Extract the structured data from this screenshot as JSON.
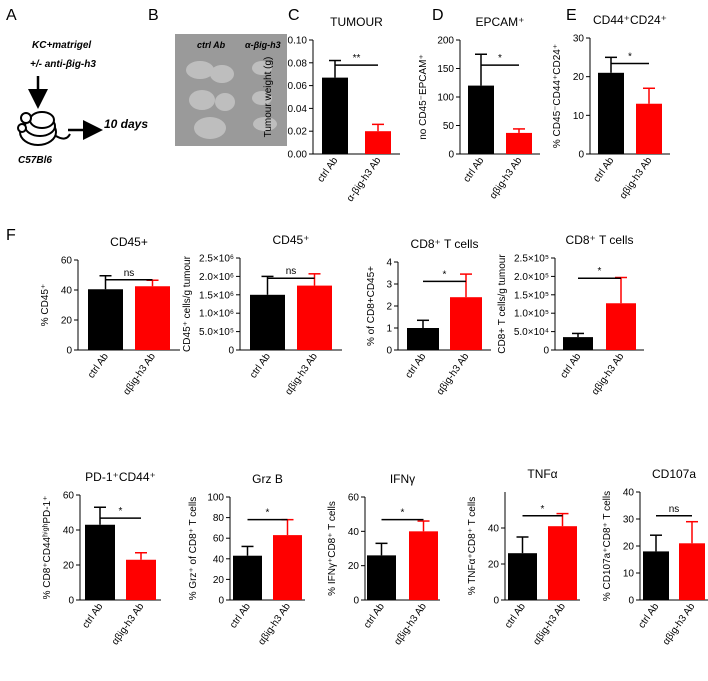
{
  "panel_a": {
    "letter": "A",
    "treatment": [
      "KC+matrigel",
      "+/- anti-βig-h3"
    ],
    "strain": "C57Bl6",
    "duration": "10 days"
  },
  "panel_b": {
    "letter": "B",
    "labels": [
      "ctrl Ab",
      "α-βig-h3"
    ]
  },
  "panel_f": {
    "letter": "F"
  },
  "chart_data": [
    {
      "type": "bar",
      "letter": "C",
      "title": "TUMOUR",
      "ylabel": "Tumour weight (g)",
      "categories": [
        "ctrl Ab",
        "α-βig-h3 Ab"
      ],
      "values": [
        0.067,
        0.02
      ],
      "errors": [
        0.015,
        0.006
      ],
      "colors": [
        "#000000",
        "#ff0000"
      ],
      "ylim": [
        0,
        0.1
      ],
      "yticks": [
        {
          "value": 0,
          "label": "0.00"
        },
        {
          "value": 0.02,
          "label": "0.02"
        },
        {
          "value": 0.04,
          "label": "0.04"
        },
        {
          "value": 0.06,
          "label": "0.06"
        },
        {
          "value": 0.08,
          "label": "0.08"
        },
        {
          "value": 0.1,
          "label": "0.10"
        }
      ],
      "significance": "**"
    },
    {
      "type": "bar",
      "letter": "D",
      "title": "EPCAM⁺",
      "ylabel": "no CD45⁻EPCAM⁺",
      "categories": [
        "ctrl Ab",
        "αβig-h3 Ab"
      ],
      "values": [
        120,
        37
      ],
      "errors": [
        55,
        7
      ],
      "colors": [
        "#000000",
        "#ff0000"
      ],
      "ylim": [
        0,
        200
      ],
      "yticks": [
        0,
        50,
        100,
        150,
        200
      ],
      "significance": "*"
    },
    {
      "type": "bar",
      "letter": "E",
      "title": "CD44⁺CD24⁺",
      "ylabel": "% CD45⁻CD44⁺CD24⁺",
      "categories": [
        "ctrl Ab",
        "αβig-h3 Ab"
      ],
      "values": [
        21,
        13
      ],
      "errors": [
        4,
        4
      ],
      "colors": [
        "#000000",
        "#ff0000"
      ],
      "ylim": [
        0,
        30
      ],
      "yticks": [
        0,
        10,
        20,
        30
      ],
      "significance": "*"
    },
    {
      "type": "bar",
      "title": "CD45+",
      "ylabel": "% CD45⁺",
      "categories": [
        "ctrl Ab",
        "αβig-h3 Ab"
      ],
      "values": [
        40.5,
        42.5
      ],
      "errors": [
        9,
        4
      ],
      "colors": [
        "#000000",
        "#ff0000"
      ],
      "ylim": [
        0,
        60
      ],
      "yticks": [
        0,
        20,
        40,
        60
      ],
      "significance": "ns"
    },
    {
      "type": "bar",
      "title": "CD45⁺",
      "ylabel": "CD45⁺ cells/g tumour",
      "categories": [
        "ctrl Ab",
        "αβig-h3 Ab"
      ],
      "values": [
        1500000,
        1750000
      ],
      "errors": [
        500000,
        320000
      ],
      "colors": [
        "#000000",
        "#ff0000"
      ],
      "ylim": [
        0,
        2500000
      ],
      "yticks": [
        0,
        {
          "value": 500000,
          "label": "5.0×10⁵"
        },
        {
          "value": 1000000,
          "label": "1.0×10⁶"
        },
        {
          "value": 1500000,
          "label": "1.5×10⁶"
        },
        {
          "value": 2000000,
          "label": "2.0×10⁶"
        },
        {
          "value": 2500000,
          "label": "2.5×10⁶"
        }
      ],
      "significance": "ns"
    },
    {
      "type": "bar",
      "title": "CD8⁺ T cells",
      "ylabel": "% of CD8+CD45+",
      "categories": [
        "ctrl Ab",
        "αβig-h3 Ab"
      ],
      "values": [
        1.0,
        2.4
      ],
      "errors": [
        0.35,
        1.05
      ],
      "colors": [
        "#000000",
        "#ff0000"
      ],
      "ylim": [
        0,
        4
      ],
      "yticks": [
        0,
        1,
        2,
        3,
        4
      ],
      "significance": "*"
    },
    {
      "type": "bar",
      "title": "CD8⁺ T cells",
      "ylabel": "CD8+ T cells/g tumour",
      "categories": [
        "ctrl Ab",
        "αβig-h3 Ab"
      ],
      "values": [
        35000,
        127000
      ],
      "errors": [
        10000,
        70000
      ],
      "colors": [
        "#000000",
        "#ff0000"
      ],
      "ylim": [
        0,
        250000
      ],
      "yticks": [
        0,
        {
          "value": 50000,
          "label": "5.0×10⁴"
        },
        {
          "value": 100000,
          "label": "1.0×10⁵"
        },
        {
          "value": 150000,
          "label": "1.5×10⁵"
        },
        {
          "value": 200000,
          "label": "2.0×10⁵"
        },
        {
          "value": 250000,
          "label": "2.5×10⁵"
        }
      ],
      "significance": "*"
    },
    {
      "type": "bar",
      "title": "PD-1⁺CD44⁺",
      "ylabel": "% CD8⁺CD44ʰⁱᵍʰPD-1⁺",
      "categories": [
        "ctrl Ab",
        "αβig-h3 Ab"
      ],
      "values": [
        43,
        23
      ],
      "errors": [
        10,
        4
      ],
      "colors": [
        "#000000",
        "#ff0000"
      ],
      "ylim": [
        0,
        60
      ],
      "yticks": [
        0,
        20,
        40,
        60
      ],
      "significance": "*"
    },
    {
      "type": "bar",
      "title": "Grz B",
      "ylabel": "% Grz⁺ of CD8⁺ T cells",
      "categories": [
        "ctrl Ab",
        "αβig-h3 Ab"
      ],
      "values": [
        43,
        63
      ],
      "errors": [
        9,
        15
      ],
      "colors": [
        "#000000",
        "#ff0000"
      ],
      "ylim": [
        0,
        100
      ],
      "yticks": [
        0,
        20,
        40,
        60,
        80,
        100
      ],
      "significance": "*"
    },
    {
      "type": "bar",
      "title": "IFNγ",
      "ylabel": "% IFNγ⁺CD8⁺ T cells",
      "categories": [
        "ctrl Ab",
        "αβig-h3 Ab"
      ],
      "values": [
        26,
        40
      ],
      "errors": [
        7,
        6
      ],
      "colors": [
        "#000000",
        "#ff0000"
      ],
      "ylim": [
        0,
        60
      ],
      "yticks": [
        0,
        20,
        40,
        60
      ],
      "significance": "*"
    },
    {
      "type": "bar",
      "title": "TNFα",
      "ylabel": "% TNFα⁺CD8⁺ T cells",
      "categories": [
        "ctrl Ab",
        "αβig-h3 Ab"
      ],
      "values": [
        26,
        41
      ],
      "errors": [
        9,
        7
      ],
      "colors": [
        "#000000",
        "#ff0000"
      ],
      "ylim": [
        0,
        60
      ],
      "yticks": [
        0,
        20,
        40
      ],
      "significance": "*"
    },
    {
      "type": "bar",
      "title": "CD107a",
      "ylabel": "% CD107a⁺CD8⁺ T cells",
      "categories": [
        "ctrl Ab",
        "αβig-h3 Ab"
      ],
      "values": [
        18,
        21
      ],
      "errors": [
        6,
        8
      ],
      "colors": [
        "#000000",
        "#ff0000"
      ],
      "ylim": [
        0,
        40
      ],
      "yticks": [
        0,
        10,
        20,
        30,
        40
      ],
      "significance": "ns"
    }
  ]
}
